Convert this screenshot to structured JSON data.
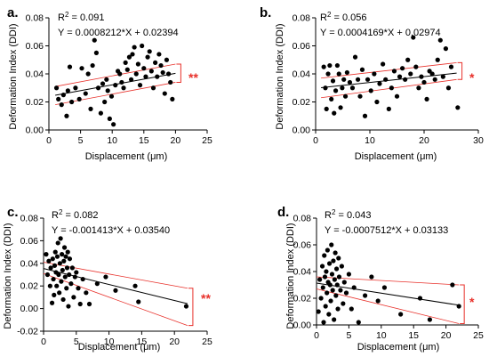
{
  "chart_data": [
    {
      "type": "scatter",
      "panel_label": "a.",
      "r2_prefix": "R",
      "r2_exp": "2",
      "r2_value": " = 0.091",
      "equation": "Y = 0.0008212*X + 0.02394",
      "xlabel": "Displacement (μm)",
      "ylabel": "Deformation Index (DDI)",
      "xlim": [
        0,
        25
      ],
      "ylim": [
        0.0,
        0.08
      ],
      "xticks": [
        0,
        5,
        10,
        15,
        20,
        25
      ],
      "xtick_labels": [
        "0",
        "5",
        "10",
        "15",
        "20",
        "25"
      ],
      "yticks": [
        0.0,
        0.02,
        0.04,
        0.06,
        0.08
      ],
      "ytick_labels": [
        "0.00",
        "0.02",
        "0.04",
        "0.06",
        "0.08"
      ],
      "fit": {
        "slope": 0.0008212,
        "intercept": 0.02394,
        "x_range": [
          1,
          20
        ]
      },
      "ci_lower": [
        [
          1,
          0.018
        ],
        [
          20,
          0.034
        ]
      ],
      "ci_upper": [
        [
          1,
          0.031
        ],
        [
          20,
          0.047
        ]
      ],
      "significance": "**",
      "colors": {
        "points": "#000000",
        "fit": "#000000",
        "ci": "#e8312b"
      },
      "points": [
        [
          1.2,
          0.03
        ],
        [
          1.5,
          0.022
        ],
        [
          2.0,
          0.018
        ],
        [
          2.3,
          0.025
        ],
        [
          2.8,
          0.01
        ],
        [
          3.0,
          0.028
        ],
        [
          3.3,
          0.045
        ],
        [
          3.6,
          0.02
        ],
        [
          4.2,
          0.03
        ],
        [
          4.8,
          0.022
        ],
        [
          5.2,
          0.044
        ],
        [
          5.8,
          0.026
        ],
        [
          6.2,
          0.04
        ],
        [
          6.6,
          0.015
        ],
        [
          6.9,
          0.046
        ],
        [
          7.2,
          0.064
        ],
        [
          7.5,
          0.055
        ],
        [
          7.8,
          0.03
        ],
        [
          8.2,
          0.012
        ],
        [
          8.5,
          0.033
        ],
        [
          8.8,
          0.02
        ],
        [
          9.1,
          0.036
        ],
        [
          9.3,
          0.028
        ],
        [
          9.6,
          0.008
        ],
        [
          9.9,
          0.024
        ],
        [
          10.2,
          0.004
        ],
        [
          10.5,
          0.032
        ],
        [
          10.9,
          0.042
        ],
        [
          11.2,
          0.04
        ],
        [
          11.5,
          0.034
        ],
        [
          11.8,
          0.03
        ],
        [
          12.1,
          0.048
        ],
        [
          12.4,
          0.043
        ],
        [
          12.7,
          0.052
        ],
        [
          13.0,
          0.036
        ],
        [
          13.2,
          0.054
        ],
        [
          13.5,
          0.059
        ],
        [
          13.8,
          0.04
        ],
        [
          14.1,
          0.047
        ],
        [
          14.4,
          0.032
        ],
        [
          14.7,
          0.06
        ],
        [
          15.0,
          0.044
        ],
        [
          15.3,
          0.038
        ],
        [
          15.6,
          0.052
        ],
        [
          15.9,
          0.056
        ],
        [
          16.2,
          0.042
        ],
        [
          16.5,
          0.03
        ],
        [
          16.8,
          0.048
        ],
        [
          17.1,
          0.038
        ],
        [
          17.4,
          0.054
        ],
        [
          17.7,
          0.046
        ],
        [
          18.0,
          0.041
        ],
        [
          18.3,
          0.026
        ],
        [
          18.6,
          0.05
        ],
        [
          18.9,
          0.04
        ],
        [
          19.2,
          0.034
        ],
        [
          19.5,
          0.022
        ]
      ]
    },
    {
      "type": "scatter",
      "panel_label": "b.",
      "r2_prefix": "R",
      "r2_exp": "2",
      "r2_value": " = 0.056",
      "equation": "Y = 0.0004169*X + 0.02974",
      "xlabel": "Displacement (μm)",
      "ylabel": "Deformation Index (DDI)",
      "xlim": [
        0,
        30
      ],
      "ylim": [
        0.0,
        0.08
      ],
      "xticks": [
        0,
        10,
        20,
        30
      ],
      "xtick_labels": [
        "0",
        "10",
        "20",
        "30"
      ],
      "yticks": [
        0.0,
        0.02,
        0.04,
        0.06,
        0.08
      ],
      "ytick_labels": [
        "0.00",
        "0.02",
        "0.04",
        "0.06",
        "0.08"
      ],
      "fit": {
        "slope": 0.0004169,
        "intercept": 0.02974,
        "x_range": [
          1,
          26
        ]
      },
      "ci_lower": [
        [
          1,
          0.023
        ],
        [
          26,
          0.036
        ]
      ],
      "ci_upper": [
        [
          1,
          0.037
        ],
        [
          26,
          0.048
        ]
      ],
      "significance": "*",
      "colors": {
        "points": "#000000",
        "fit": "#000000",
        "ci": "#e8312b"
      },
      "points": [
        [
          1.5,
          0.045
        ],
        [
          1.8,
          0.03
        ],
        [
          2.0,
          0.015
        ],
        [
          2.3,
          0.04
        ],
        [
          2.6,
          0.046
        ],
        [
          2.9,
          0.022
        ],
        [
          3.2,
          0.035
        ],
        [
          3.4,
          0.012
        ],
        [
          3.7,
          0.028
        ],
        [
          4.0,
          0.046
        ],
        [
          4.3,
          0.04
        ],
        [
          4.6,
          0.016
        ],
        [
          4.9,
          0.03
        ],
        [
          5.2,
          0.036
        ],
        [
          5.5,
          0.024
        ],
        [
          5.8,
          0.041
        ],
        [
          6.3,
          0.034
        ],
        [
          6.8,
          0.03
        ],
        [
          7.3,
          0.052
        ],
        [
          7.8,
          0.036
        ],
        [
          8.2,
          0.024
        ],
        [
          8.6,
          0.043
        ],
        [
          9.1,
          0.01
        ],
        [
          9.6,
          0.036
        ],
        [
          10.2,
          0.028
        ],
        [
          10.8,
          0.04
        ],
        [
          11.3,
          0.02
        ],
        [
          11.8,
          0.033
        ],
        [
          12.4,
          0.047
        ],
        [
          12.9,
          0.036
        ],
        [
          13.5,
          0.015
        ],
        [
          14.0,
          0.03
        ],
        [
          14.5,
          0.042
        ],
        [
          15.0,
          0.024
        ],
        [
          15.5,
          0.038
        ],
        [
          16.0,
          0.044
        ],
        [
          16.5,
          0.036
        ],
        [
          17.0,
          0.05
        ],
        [
          17.5,
          0.04
        ],
        [
          18.0,
          0.066
        ],
        [
          18.5,
          0.045
        ],
        [
          19.0,
          0.03
        ],
        [
          19.5,
          0.038
        ],
        [
          20.0,
          0.034
        ],
        [
          20.5,
          0.022
        ],
        [
          21.0,
          0.042
        ],
        [
          21.5,
          0.04
        ],
        [
          22.0,
          0.036
        ],
        [
          22.5,
          0.05
        ],
        [
          23.0,
          0.064
        ],
        [
          23.5,
          0.038
        ],
        [
          24.0,
          0.058
        ],
        [
          24.5,
          0.03
        ],
        [
          25.0,
          0.045
        ],
        [
          26.2,
          0.016
        ]
      ]
    },
    {
      "type": "scatter",
      "panel_label": "c.",
      "r2_prefix": "R",
      "r2_exp": "2",
      "r2_value": " = 0.082",
      "equation": "Y = -0.001413*X + 0.03540",
      "xlabel": "Displacement (μm)",
      "ylabel": "Deformation Index (DDI)",
      "xlim": [
        0,
        25
      ],
      "ylim": [
        -0.02,
        0.08
      ],
      "xticks": [
        0,
        5,
        10,
        15,
        20,
        25
      ],
      "xtick_labels": [
        "0",
        "5",
        "10",
        "15",
        "20",
        "25"
      ],
      "yticks": [
        -0.02,
        0.0,
        0.02,
        0.04,
        0.06,
        0.08
      ],
      "ytick_labels": [
        "-0.02",
        "0.00",
        "0.02",
        "0.04",
        "0.06",
        "0.08"
      ],
      "fit": {
        "slope": -0.001413,
        "intercept": 0.0354,
        "x_range": [
          0,
          22
        ]
      },
      "ci_lower": [
        [
          0,
          0.031
        ],
        [
          22,
          -0.015
        ]
      ],
      "ci_upper": [
        [
          0,
          0.041
        ],
        [
          22,
          0.018
        ]
      ],
      "significance": "**",
      "colors": {
        "points": "#000000",
        "fit": "#000000",
        "ci": "#e8312b"
      },
      "points": [
        [
          0.4,
          0.048
        ],
        [
          0.6,
          0.03
        ],
        [
          0.8,
          0.042
        ],
        [
          1.0,
          0.02
        ],
        [
          1.1,
          0.036
        ],
        [
          1.3,
          0.005
        ],
        [
          1.4,
          0.044
        ],
        [
          1.5,
          0.026
        ],
        [
          1.6,
          0.012
        ],
        [
          1.7,
          0.038
        ],
        [
          1.8,
          0.05
        ],
        [
          1.9,
          0.032
        ],
        [
          2.0,
          0.02
        ],
        [
          2.1,
          0.046
        ],
        [
          2.2,
          0.058
        ],
        [
          2.3,
          0.03
        ],
        [
          2.4,
          0.014
        ],
        [
          2.5,
          0.04
        ],
        [
          2.6,
          0.062
        ],
        [
          2.7,
          0.024
        ],
        [
          2.8,
          0.048
        ],
        [
          2.9,
          0.034
        ],
        [
          3.0,
          0.008
        ],
        [
          3.1,
          0.042
        ],
        [
          3.2,
          0.054
        ],
        [
          3.3,
          0.028
        ],
        [
          3.4,
          0.046
        ],
        [
          3.5,
          0.018
        ],
        [
          3.6,
          0.036
        ],
        [
          3.7,
          0.05
        ],
        [
          3.8,
          0.002
        ],
        [
          3.9,
          0.03
        ],
        [
          4.0,
          0.044
        ],
        [
          4.2,
          0.022
        ],
        [
          4.4,
          0.036
        ],
        [
          4.6,
          0.01
        ],
        [
          4.8,
          0.028
        ],
        [
          5.0,
          0.032
        ],
        [
          5.3,
          0.018
        ],
        [
          5.6,
          0.004
        ],
        [
          6.0,
          0.026
        ],
        [
          6.5,
          0.014
        ],
        [
          7.0,
          0.004
        ],
        [
          8.2,
          0.022
        ],
        [
          9.5,
          0.028
        ],
        [
          11.0,
          0.016
        ],
        [
          14.0,
          0.02
        ],
        [
          14.5,
          0.006
        ],
        [
          21.8,
          0.002
        ]
      ]
    },
    {
      "type": "scatter",
      "panel_label": "d.",
      "r2_prefix": "R",
      "r2_exp": "2",
      "r2_value": " = 0.043",
      "equation": "Y = -0.0007512*X + 0.03133",
      "xlabel": "Displacement (μm)",
      "ylabel": "Deformation Index (DDI)",
      "xlim": [
        0,
        25
      ],
      "ylim": [
        0.0,
        0.08
      ],
      "xticks": [
        0,
        5,
        10,
        15,
        20,
        25
      ],
      "xtick_labels": [
        "0",
        "5",
        "10",
        "15",
        "20",
        "25"
      ],
      "yticks": [
        0.0,
        0.02,
        0.04,
        0.06,
        0.08
      ],
      "ytick_labels": [
        "0.00",
        "0.02",
        "0.04",
        "0.06",
        "0.08"
      ],
      "fit": {
        "slope": -0.0007512,
        "intercept": 0.03133,
        "x_range": [
          0,
          22
        ]
      },
      "ci_lower": [
        [
          0,
          0.027
        ],
        [
          22,
          0.001
        ]
      ],
      "ci_upper": [
        [
          0,
          0.036
        ],
        [
          22,
          0.03
        ]
      ],
      "significance": "*",
      "colors": {
        "points": "#000000",
        "fit": "#000000",
        "ci": "#e8312b"
      },
      "points": [
        [
          0.3,
          0.01
        ],
        [
          0.5,
          0.034
        ],
        [
          0.7,
          0.02
        ],
        [
          0.9,
          0.044
        ],
        [
          1.0,
          0.028
        ],
        [
          1.1,
          0.002
        ],
        [
          1.2,
          0.052
        ],
        [
          1.3,
          0.036
        ],
        [
          1.4,
          0.014
        ],
        [
          1.5,
          0.04
        ],
        [
          1.6,
          0.024
        ],
        [
          1.7,
          0.056
        ],
        [
          1.8,
          0.032
        ],
        [
          1.9,
          0.008
        ],
        [
          2.0,
          0.046
        ],
        [
          2.1,
          0.03
        ],
        [
          2.2,
          0.018
        ],
        [
          2.3,
          0.06
        ],
        [
          2.4,
          0.038
        ],
        [
          2.5,
          0.026
        ],
        [
          2.6,
          0.048
        ],
        [
          2.7,
          0.004
        ],
        [
          2.8,
          0.034
        ],
        [
          2.9,
          0.054
        ],
        [
          3.0,
          0.022
        ],
        [
          3.1,
          0.042
        ],
        [
          3.2,
          0.03
        ],
        [
          3.3,
          0.012
        ],
        [
          3.4,
          0.05
        ],
        [
          3.5,
          0.036
        ],
        [
          3.7,
          0.026
        ],
        [
          3.9,
          0.044
        ],
        [
          4.1,
          0.016
        ],
        [
          4.3,
          0.032
        ],
        [
          4.6,
          0.024
        ],
        [
          5.0,
          0.038
        ],
        [
          5.4,
          0.012
        ],
        [
          5.8,
          0.028
        ],
        [
          6.5,
          0.002
        ],
        [
          7.5,
          0.022
        ],
        [
          8.5,
          0.036
        ],
        [
          9.5,
          0.018
        ],
        [
          10.5,
          0.028
        ],
        [
          13.0,
          0.008
        ],
        [
          16.0,
          0.02
        ],
        [
          17.5,
          0.004
        ],
        [
          21.0,
          0.03
        ],
        [
          22.0,
          0.014
        ]
      ]
    }
  ]
}
